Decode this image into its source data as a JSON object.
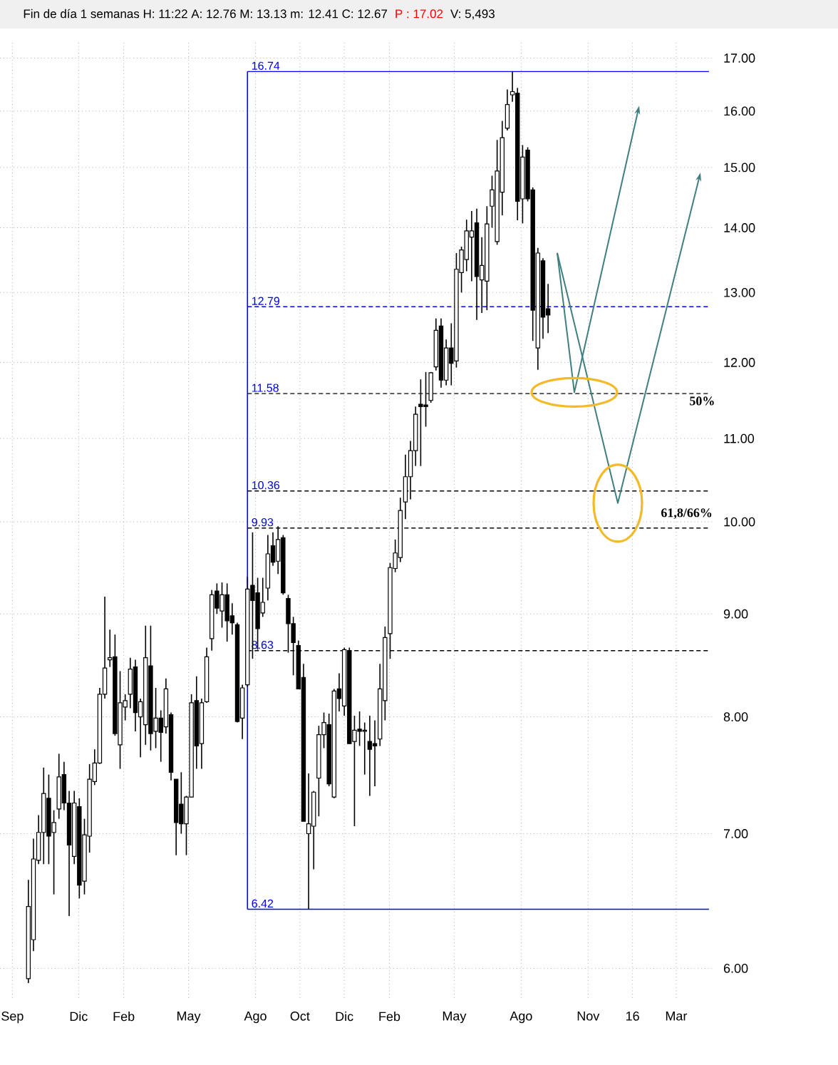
{
  "chart_data": {
    "type": "candlestick",
    "title": "Fin de día 1 semanas  H: 11:22  A: 12.76  M: 13.13  m: 12.41  C: 12.67",
    "subtitle": "P : 17.02",
    "annotations": [
      "V: 5,493",
      "50%",
      "61,8/66%"
    ],
    "x": [
      "2013-09-23",
      "2013-09-30",
      "2013-10-07",
      "2013-10-14",
      "2013-10-21",
      "2013-10-28",
      "2013-11-04",
      "2013-11-11",
      "2013-11-18",
      "2013-11-25",
      "2013-12-02",
      "2013-12-09",
      "2013-12-16",
      "2013-12-23",
      "2013-12-30",
      "2014-01-06",
      "2014-01-13",
      "2014-01-20",
      "2014-01-27",
      "2014-02-03",
      "2014-02-10",
      "2014-02-17",
      "2014-02-24",
      "2014-03-03",
      "2014-03-10",
      "2014-03-17",
      "2014-03-24",
      "2014-03-31",
      "2014-04-07",
      "2014-04-14",
      "2014-04-21",
      "2014-04-28",
      "2014-05-05",
      "2014-05-12",
      "2014-05-19",
      "2014-05-26",
      "2014-06-02",
      "2014-06-09",
      "2014-06-16",
      "2014-06-23",
      "2014-06-30",
      "2014-07-07",
      "2014-07-14",
      "2014-07-21",
      "2014-07-28",
      "2014-08-04",
      "2014-08-11",
      "2014-08-18",
      "2014-08-25",
      "2014-09-01",
      "2014-09-08",
      "2014-09-15",
      "2014-09-22",
      "2014-09-29",
      "2014-10-06",
      "2014-10-13",
      "2014-10-20",
      "2014-10-27",
      "2014-11-03",
      "2014-11-10",
      "2014-11-17",
      "2014-11-24",
      "2014-12-01",
      "2014-12-08",
      "2014-12-15",
      "2014-12-22",
      "2014-12-29",
      "2015-01-05",
      "2015-01-12",
      "2015-01-19",
      "2015-01-26",
      "2015-02-02",
      "2015-02-09",
      "2015-02-16",
      "2015-02-23",
      "2015-03-02",
      "2015-03-09",
      "2015-03-16",
      "2015-03-23",
      "2015-03-30",
      "2015-04-06",
      "2015-04-13",
      "2015-04-20",
      "2015-04-27",
      "2015-05-04",
      "2015-05-11",
      "2015-05-18",
      "2015-05-25",
      "2015-06-01",
      "2015-06-08",
      "2015-06-15",
      "2015-06-22",
      "2015-06-29",
      "2015-07-06",
      "2015-07-13",
      "2015-07-20",
      "2015-07-27",
      "2015-08-03",
      "2015-08-10",
      "2015-08-17",
      "2015-08-24",
      "2015-08-31",
      "2015-09-07"
    ],
    "ohlc": [
      [
        5.93,
        6.64,
        5.9,
        6.44
      ],
      [
        6.2,
        6.96,
        6.12,
        6.8
      ],
      [
        6.79,
        7.15,
        6.76,
        7.01
      ],
      [
        7.01,
        7.55,
        6.76,
        7.33
      ],
      [
        7.29,
        7.49,
        6.76,
        6.98
      ],
      [
        7.01,
        7.19,
        6.53,
        7.09
      ],
      [
        7.2,
        7.67,
        7.12,
        7.47
      ],
      [
        7.49,
        7.6,
        7.19,
        7.25
      ],
      [
        7.25,
        7.35,
        6.37,
        6.91
      ],
      [
        6.82,
        7.35,
        6.76,
        7.25
      ],
      [
        7.22,
        7.29,
        6.5,
        6.6
      ],
      [
        6.63,
        7.12,
        6.53,
        6.99
      ],
      [
        6.98,
        7.58,
        6.85,
        7.45
      ],
      [
        7.43,
        7.71,
        7.4,
        7.59
      ],
      [
        7.59,
        8.27,
        7.58,
        8.21
      ],
      [
        8.21,
        9.18,
        8.17,
        8.46
      ],
      [
        8.54,
        8.84,
        8.47,
        8.56
      ],
      [
        8.57,
        8.79,
        7.83,
        7.85
      ],
      [
        7.75,
        8.43,
        7.54,
        8.13
      ],
      [
        8.09,
        8.21,
        7.97,
        8.15
      ],
      [
        8.21,
        8.56,
        8.08,
        8.45
      ],
      [
        8.47,
        8.54,
        7.87,
        8.04
      ],
      [
        8.0,
        8.17,
        7.64,
        8.14
      ],
      [
        7.93,
        8.88,
        7.75,
        8.56
      ],
      [
        8.48,
        8.88,
        7.7,
        7.85
      ],
      [
        7.87,
        8.27,
        7.72,
        7.99
      ],
      [
        7.99,
        8.06,
        7.6,
        7.86
      ],
      [
        7.91,
        8.36,
        7.85,
        8.26
      ],
      [
        8.02,
        8.04,
        7.44,
        7.51
      ],
      [
        7.45,
        7.45,
        6.83,
        7.09
      ],
      [
        7.24,
        7.51,
        7.0,
        7.08
      ],
      [
        7.08,
        7.31,
        6.83,
        7.3
      ],
      [
        7.3,
        8.21,
        7.3,
        8.13
      ],
      [
        8.15,
        8.38,
        7.54,
        7.74
      ],
      [
        7.76,
        8.17,
        7.54,
        8.13
      ],
      [
        8.14,
        8.66,
        8.13,
        8.57
      ],
      [
        8.75,
        9.25,
        8.63,
        9.2
      ],
      [
        9.24,
        9.32,
        9.0,
        9.06
      ],
      [
        9.03,
        9.33,
        8.86,
        9.2
      ],
      [
        9.2,
        9.32,
        8.72,
        8.93
      ],
      [
        8.98,
        9.11,
        8.79,
        8.91
      ],
      [
        8.89,
        8.91,
        7.95,
        7.96
      ],
      [
        7.99,
        8.3,
        7.8,
        8.27
      ],
      [
        8.3,
        9.39,
        8.28,
        9.26
      ],
      [
        9.3,
        9.88,
        8.55,
        9.14
      ],
      [
        9.22,
        9.38,
        8.64,
        8.85
      ],
      [
        9.01,
        9.38,
        8.97,
        9.12
      ],
      [
        9.27,
        9.85,
        9.14,
        9.64
      ],
      [
        9.73,
        9.88,
        9.51,
        9.55
      ],
      [
        9.56,
        9.95,
        9.42,
        9.8
      ],
      [
        9.82,
        9.85,
        9.2,
        9.22
      ],
      [
        9.16,
        9.2,
        8.61,
        8.9
      ],
      [
        8.9,
        8.97,
        8.39,
        8.71
      ],
      [
        8.68,
        8.73,
        8.26,
        8.26
      ],
      [
        8.37,
        8.5,
        7.1,
        7.1
      ],
      [
        7.0,
        7.5,
        6.42,
        7.08
      ],
      [
        7.06,
        7.35,
        6.72,
        7.34
      ],
      [
        7.46,
        7.92,
        7.14,
        7.84
      ],
      [
        7.84,
        8.04,
        7.72,
        7.95
      ],
      [
        7.93,
        8.03,
        7.39,
        7.41
      ],
      [
        7.3,
        8.26,
        7.29,
        8.24
      ],
      [
        8.26,
        8.41,
        8.05,
        8.17
      ],
      [
        8.1,
        8.66,
        8.01,
        8.64
      ],
      [
        8.63,
        8.66,
        7.76,
        7.76
      ],
      [
        7.78,
        8.01,
        7.06,
        7.88
      ],
      [
        7.89,
        8.05,
        7.74,
        7.87
      ],
      [
        7.87,
        7.95,
        7.49,
        7.88
      ],
      [
        7.78,
        8.01,
        7.31,
        7.71
      ],
      [
        7.76,
        7.97,
        7.39,
        7.74
      ],
      [
        7.8,
        8.5,
        7.74,
        8.26
      ],
      [
        8.15,
        8.87,
        7.97,
        8.76
      ],
      [
        8.8,
        9.54,
        8.55,
        9.49
      ],
      [
        9.48,
        9.8,
        9.44,
        9.65
      ],
      [
        9.6,
        10.28,
        9.55,
        10.13
      ],
      [
        10.23,
        10.8,
        10.03,
        10.53
      ],
      [
        10.53,
        10.97,
        10.26,
        10.85
      ],
      [
        10.85,
        11.41,
        10.66,
        11.31
      ],
      [
        11.44,
        11.77,
        10.66,
        11.41
      ],
      [
        11.43,
        11.87,
        11.15,
        11.41
      ],
      [
        11.49,
        11.87,
        11.46,
        11.86
      ],
      [
        11.94,
        12.62,
        11.89,
        12.45
      ],
      [
        12.51,
        12.62,
        11.66,
        11.76
      ],
      [
        11.76,
        12.32,
        11.69,
        12.2
      ],
      [
        12.2,
        12.55,
        11.69,
        11.99
      ],
      [
        12.02,
        13.6,
        11.93,
        13.35
      ],
      [
        13.3,
        13.7,
        13.0,
        13.65
      ],
      [
        13.5,
        14.13,
        13.32,
        13.95
      ],
      [
        13.85,
        14.27,
        13.17,
        13.95
      ],
      [
        14.08,
        14.31,
        12.6,
        13.24
      ],
      [
        13.19,
        13.85,
        12.7,
        13.41
      ],
      [
        13.17,
        14.35,
        12.74,
        14.06
      ],
      [
        14.35,
        14.86,
        14.0,
        14.62
      ],
      [
        13.78,
        15.48,
        13.73,
        14.94
      ],
      [
        14.58,
        15.82,
        14.2,
        15.52
      ],
      [
        15.69,
        16.4,
        15.65,
        16.12
      ],
      [
        16.3,
        16.74,
        16.17,
        16.36
      ],
      [
        16.33,
        16.43,
        14.12,
        14.43
      ],
      [
        14.47,
        15.39,
        14.07,
        15.18
      ],
      [
        15.3,
        15.35,
        14.43,
        14.47
      ],
      [
        14.62,
        14.66,
        12.3,
        12.74
      ],
      [
        12.2,
        13.68,
        11.9,
        13.6
      ],
      [
        13.48,
        13.52,
        12.33,
        12.64
      ],
      [
        12.76,
        13.13,
        12.41,
        12.67
      ]
    ],
    "xlim": [
      "2013-08-15",
      "2016-04-20"
    ],
    "ylim": [
      5.8,
      17.3
    ],
    "xticks": [
      {
        "value": "2013-09-01",
        "label": "Sep"
      },
      {
        "value": "2013-12-01",
        "label": "Dic"
      },
      {
        "value": "2014-02-01",
        "label": "Feb"
      },
      {
        "value": "2014-05-01",
        "label": "May"
      },
      {
        "value": "2014-08-01",
        "label": "Ago"
      },
      {
        "value": "2014-10-01",
        "label": "Oct"
      },
      {
        "value": "2014-12-01",
        "label": "Dic"
      },
      {
        "value": "2015-02-01",
        "label": "Feb"
      },
      {
        "value": "2015-05-01",
        "label": "May"
      },
      {
        "value": "2015-08-01",
        "label": "Ago"
      },
      {
        "value": "2015-11-01",
        "label": "Nov"
      },
      {
        "value": "2016-01-01",
        "label": "16"
      },
      {
        "value": "2016-03-01",
        "label": "Mar"
      }
    ],
    "yticks": [
      {
        "value": 6,
        "label": "6.00"
      },
      {
        "value": 7,
        "label": "7.00"
      },
      {
        "value": 8,
        "label": "8.00"
      },
      {
        "value": 9,
        "label": "9.00"
      },
      {
        "value": 10,
        "label": "10.00"
      },
      {
        "value": 11,
        "label": "11.00"
      },
      {
        "value": 12,
        "label": "12.00"
      },
      {
        "value": 13,
        "label": "13.00"
      },
      {
        "value": 14,
        "label": "14.00"
      },
      {
        "value": 15,
        "label": "15.00"
      },
      {
        "value": 16,
        "label": "16.00"
      },
      {
        "value": 17,
        "label": "17.00"
      }
    ],
    "log": true,
    "grid": true,
    "ref_lines": [
      {
        "axis": "x",
        "value": "2014-07-21",
        "color": "#0000ff",
        "line_style": "solid"
      },
      {
        "axis": "y",
        "value": 16.74,
        "label": "16.74",
        "color": "#0000ff",
        "line_style": "solid"
      },
      {
        "axis": "y",
        "value": 12.79,
        "label": "12.79",
        "color": "#0000ff",
        "line_style": "dashed"
      },
      {
        "axis": "y",
        "value": 11.58,
        "label": "11.58",
        "color": "#000000",
        "line_style": "dashed"
      },
      {
        "axis": "y",
        "value": 10.36,
        "label": "10.36",
        "color": "#000000",
        "line_style": "dashed"
      },
      {
        "axis": "y",
        "value": 9.93,
        "label": "9.93",
        "color": "#000000",
        "line_style": "dashed"
      },
      {
        "axis": "y",
        "value": 8.63,
        "label": "8.63",
        "color": "#000000",
        "line_style": "dashed"
      },
      {
        "axis": "y",
        "value": 6.42,
        "label": "6.42",
        "color": "#0000ff",
        "line_style": "solid"
      }
    ]
  }
}
